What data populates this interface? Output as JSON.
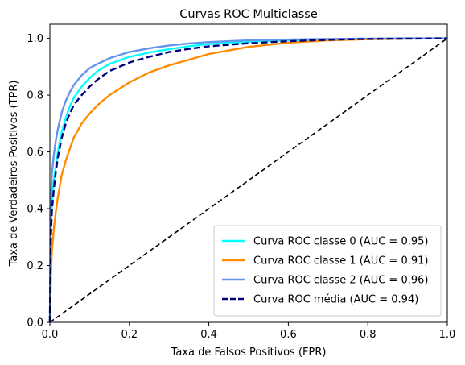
{
  "chart_data": {
    "type": "line",
    "title": "Curvas ROC Multiclasse",
    "xlabel": "Taxa de Falsos Positivos (FPR)",
    "ylabel": "Taxa de Verdadeiros Positivos (TPR)",
    "xlim": [
      0.0,
      1.0
    ],
    "ylim": [
      0.0,
      1.05
    ],
    "xticks": [
      "0.0",
      "0.2",
      "0.4",
      "0.6",
      "0.8",
      "1.0"
    ],
    "yticks": [
      "0.0",
      "0.2",
      "0.4",
      "0.6",
      "0.8",
      "1.0"
    ],
    "grid": false,
    "legend_position": "lower right",
    "series": [
      {
        "name": "Curva ROC classe 0 (AUC = 0.95)",
        "color": "#00FFFF",
        "style": "solid",
        "x": [
          0,
          0.002,
          0.005,
          0.01,
          0.015,
          0.02,
          0.03,
          0.04,
          0.05,
          0.06,
          0.07,
          0.08,
          0.1,
          0.12,
          0.15,
          0.2,
          0.25,
          0.3,
          0.35,
          0.4,
          0.5,
          0.6,
          0.7,
          0.8,
          0.9,
          1.0
        ],
        "y": [
          0,
          0.3,
          0.42,
          0.5,
          0.55,
          0.6,
          0.67,
          0.72,
          0.76,
          0.79,
          0.81,
          0.83,
          0.86,
          0.885,
          0.91,
          0.935,
          0.95,
          0.962,
          0.972,
          0.98,
          0.988,
          0.993,
          0.996,
          0.998,
          0.999,
          1.0
        ]
      },
      {
        "name": "Curva ROC classe 1 (AUC = 0.91)",
        "color": "#FF8C00",
        "style": "solid",
        "x": [
          0,
          0.003,
          0.005,
          0.01,
          0.015,
          0.02,
          0.03,
          0.04,
          0.05,
          0.06,
          0.08,
          0.1,
          0.12,
          0.15,
          0.2,
          0.25,
          0.3,
          0.35,
          0.4,
          0.5,
          0.6,
          0.7,
          0.8,
          0.9,
          1.0
        ],
        "y": [
          0,
          0.18,
          0.25,
          0.33,
          0.39,
          0.44,
          0.52,
          0.57,
          0.61,
          0.65,
          0.7,
          0.735,
          0.765,
          0.8,
          0.845,
          0.88,
          0.905,
          0.925,
          0.945,
          0.97,
          0.985,
          0.993,
          0.997,
          0.999,
          1.0
        ]
      },
      {
        "name": "Curva ROC classe 2 (AUC = 0.96)",
        "color": "#6495ED",
        "style": "solid",
        "x": [
          0,
          0.002,
          0.005,
          0.01,
          0.015,
          0.02,
          0.03,
          0.04,
          0.05,
          0.06,
          0.08,
          0.1,
          0.12,
          0.15,
          0.2,
          0.25,
          0.3,
          0.35,
          0.4,
          0.5,
          0.6,
          0.7,
          0.8,
          0.9,
          1.0
        ],
        "y": [
          0,
          0.4,
          0.52,
          0.59,
          0.64,
          0.68,
          0.74,
          0.78,
          0.81,
          0.835,
          0.87,
          0.895,
          0.91,
          0.93,
          0.952,
          0.965,
          0.975,
          0.982,
          0.987,
          0.993,
          0.996,
          0.998,
          0.999,
          1.0,
          1.0
        ]
      },
      {
        "name": "Curva ROC média (AUC = 0.94)",
        "color": "#000080",
        "style": "dashed",
        "x": [
          0,
          0.002,
          0.005,
          0.01,
          0.015,
          0.02,
          0.03,
          0.04,
          0.05,
          0.06,
          0.08,
          0.1,
          0.12,
          0.15,
          0.2,
          0.25,
          0.3,
          0.35,
          0.4,
          0.5,
          0.6,
          0.7,
          0.8,
          0.9,
          1.0
        ],
        "y": [
          0,
          0.28,
          0.39,
          0.47,
          0.53,
          0.58,
          0.65,
          0.7,
          0.735,
          0.765,
          0.8,
          0.83,
          0.855,
          0.885,
          0.915,
          0.935,
          0.952,
          0.963,
          0.972,
          0.983,
          0.99,
          0.995,
          0.998,
          0.999,
          1.0
        ]
      }
    ],
    "reference_line": {
      "color": "#000000",
      "style": "dashed",
      "x": [
        0,
        1
      ],
      "y": [
        0,
        1
      ]
    }
  }
}
